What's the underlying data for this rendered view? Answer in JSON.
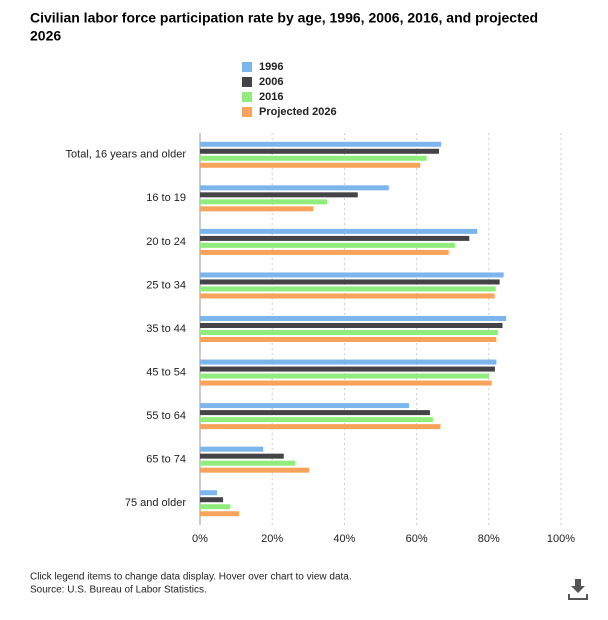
{
  "chart_data": {
    "type": "hbar",
    "title_lines": [
      "Civilian labor force participation rate by age, 1996, 2006, 2016, and projected",
      "2026"
    ],
    "categories": [
      "Total, 16 years and older",
      "16 to 19",
      "20 to 24",
      "25 to 34",
      "35 to 44",
      "45 to 54",
      "55 to 64",
      "65 to 74",
      "75 and older"
    ],
    "series": [
      {
        "name": "1996",
        "color": "#7cb5ec",
        "values": [
          66.8,
          52.3,
          76.8,
          84.1,
          84.8,
          82.1,
          57.9,
          17.5,
          4.7
        ]
      },
      {
        "name": "2006",
        "color": "#434348",
        "values": [
          66.2,
          43.7,
          74.6,
          83.0,
          83.8,
          81.7,
          63.7,
          23.2,
          6.4
        ]
      },
      {
        "name": "2016",
        "color": "#90ed7d",
        "values": [
          62.8,
          35.2,
          70.6,
          81.9,
          82.5,
          80.0,
          64.5,
          26.3,
          8.4
        ]
      },
      {
        "name": "Projected 2026",
        "color": "#f7a35c",
        "values": [
          61.0,
          31.4,
          68.9,
          81.6,
          82.1,
          80.8,
          66.6,
          30.2,
          10.8
        ]
      }
    ],
    "xlim": [
      0,
      100
    ],
    "xticks": [
      {
        "value": 0,
        "label": "0%"
      },
      {
        "value": 20,
        "label": "20%"
      },
      {
        "value": 40,
        "label": "40%"
      },
      {
        "value": 60,
        "label": "60%"
      },
      {
        "value": 80,
        "label": "80%"
      },
      {
        "value": 100,
        "label": "100%"
      }
    ],
    "grid": true,
    "notes": [
      "Click legend items to change data display. Hover over chart to view data.",
      "Source: U.S. Bureau of Labor Statistics."
    ]
  }
}
